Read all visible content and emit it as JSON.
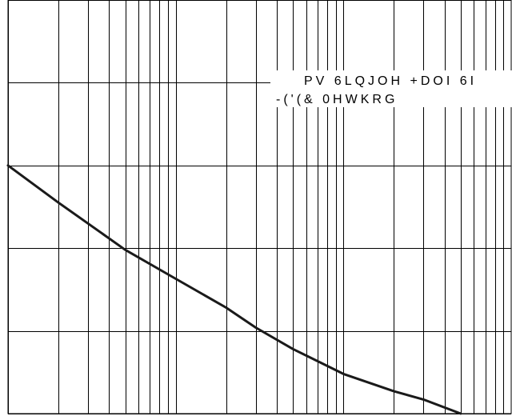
{
  "chart_data": {
    "type": "line",
    "xscale": "log",
    "xlim": [
      10,
      10000
    ],
    "ylim": [
      0,
      5
    ],
    "grid": true,
    "legend": {
      "placement": "top-right",
      "lines": [
        "PV 6LQJOH +DOI 6I",
        "-('(& 0HWKRG"
      ]
    },
    "colors": {
      "curve": "#1a1a1a",
      "grid": "#000000"
    },
    "series": [
      {
        "x": [
          10,
          20,
          50,
          100,
          200,
          300,
          500,
          1000,
          2000,
          3000,
          5000
        ],
        "y": [
          3.0,
          2.55,
          1.98,
          1.63,
          1.28,
          1.04,
          0.78,
          0.48,
          0.27,
          0.17,
          0.0
        ]
      }
    ]
  }
}
